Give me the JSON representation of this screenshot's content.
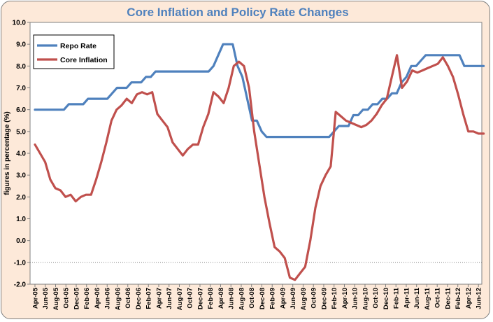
{
  "chart_data": {
    "type": "line",
    "title": "Core Inflation and Policy Rate Changes",
    "xlabel": "",
    "ylabel": "figures in percentage (%)",
    "ylim": [
      -2.0,
      10.0
    ],
    "y_ticks": [
      "10.0",
      "9.0",
      "8.0",
      "7.0",
      "6.0",
      "5.0",
      "4.0",
      "3.0",
      "2.0",
      "1.0",
      "0.0",
      "-1.0",
      "-2.0"
    ],
    "x_tick_labels": [
      "Apr-05",
      "Jun-05",
      "Aug-05",
      "Oct-05",
      "Dec-05",
      "Feb-06",
      "Apr-06",
      "Jun-06",
      "Aug-06",
      "Oct-06",
      "Dec-06",
      "Feb-07",
      "Apr-07",
      "Jun-07",
      "Aug-07",
      "Oct-07",
      "Dec-07",
      "Feb-08",
      "Apr-08",
      "Jun-08",
      "Aug-08",
      "Oct-08",
      "Dec-08",
      "Feb-09",
      "Apr-09",
      "Jun-09",
      "Aug-09",
      "Oct-09",
      "Dec-09",
      "Feb-10",
      "Apr-10",
      "Jun-10",
      "Aug-10",
      "Oct-10",
      "Dec-10",
      "Feb-11",
      "Apr-11",
      "Jun-11",
      "Aug-11",
      "Oct-11",
      "Dec-11",
      "Feb-12",
      "Apr-12",
      "Jun-12"
    ],
    "legend_position": "top-left",
    "series": [
      {
        "name": "Repo Rate",
        "color": "#4f81bd",
        "values": [
          6.0,
          6.0,
          6.0,
          6.0,
          6.0,
          6.0,
          6.0,
          6.25,
          6.25,
          6.25,
          6.25,
          6.5,
          6.5,
          6.5,
          6.5,
          6.5,
          6.75,
          7.0,
          7.0,
          7.0,
          7.25,
          7.25,
          7.25,
          7.5,
          7.5,
          7.75,
          7.75,
          7.75,
          7.75,
          7.75,
          7.75,
          7.75,
          7.75,
          7.75,
          7.75,
          7.75,
          7.75,
          8.0,
          8.5,
          9.0,
          9.0,
          9.0,
          8.0,
          7.5,
          6.5,
          5.5,
          5.5,
          5.0,
          4.75,
          4.75,
          4.75,
          4.75,
          4.75,
          4.75,
          4.75,
          4.75,
          4.75,
          4.75,
          4.75,
          4.75,
          4.75,
          4.75,
          5.0,
          5.25,
          5.25,
          5.25,
          5.75,
          5.75,
          6.0,
          6.0,
          6.25,
          6.25,
          6.5,
          6.5,
          6.75,
          6.75,
          7.25,
          7.5,
          8.0,
          8.0,
          8.25,
          8.5,
          8.5,
          8.5,
          8.5,
          8.5,
          8.5,
          8.5,
          8.5,
          8.0,
          8.0,
          8.0,
          8.0,
          8.0
        ]
      },
      {
        "name": "Core Inflation",
        "color": "#c0504d",
        "values": [
          4.4,
          4.0,
          3.6,
          2.8,
          2.4,
          2.3,
          2.0,
          2.1,
          1.8,
          2.0,
          2.1,
          2.1,
          2.8,
          3.6,
          4.5,
          5.5,
          6.0,
          6.2,
          6.5,
          6.3,
          6.7,
          6.8,
          6.7,
          6.8,
          5.8,
          5.5,
          5.2,
          4.5,
          4.2,
          3.9,
          4.2,
          4.4,
          4.4,
          5.2,
          5.8,
          6.8,
          6.6,
          6.3,
          7.0,
          8.0,
          8.2,
          8.0,
          7.0,
          5.0,
          3.5,
          2.0,
          0.8,
          -0.3,
          -0.5,
          -0.8,
          -1.7,
          -1.8,
          -1.5,
          -1.2,
          0.0,
          1.5,
          2.5,
          3.0,
          3.4,
          5.9,
          5.7,
          5.5,
          5.4,
          5.3,
          5.2,
          5.3,
          5.5,
          5.8,
          6.2,
          6.5,
          7.5,
          8.5,
          7.0,
          7.3,
          7.8,
          7.7,
          7.8,
          7.9,
          8.0,
          8.1,
          8.4,
          8.0,
          7.5,
          6.7,
          5.8,
          5.0,
          5.0,
          4.9,
          4.9
        ]
      }
    ]
  }
}
